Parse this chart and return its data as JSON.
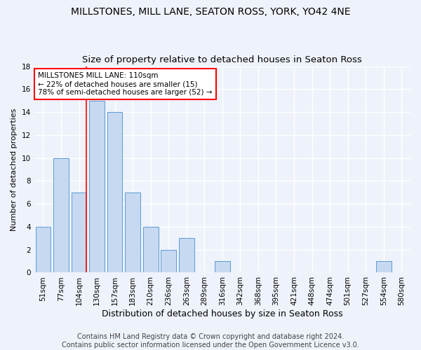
{
  "title": "MILLSTONES, MILL LANE, SEATON ROSS, YORK, YO42 4NE",
  "subtitle": "Size of property relative to detached houses in Seaton Ross",
  "xlabel": "Distribution of detached houses by size in Seaton Ross",
  "ylabel": "Number of detached properties",
  "categories": [
    "51sqm",
    "77sqm",
    "104sqm",
    "130sqm",
    "157sqm",
    "183sqm",
    "210sqm",
    "236sqm",
    "263sqm",
    "289sqm",
    "316sqm",
    "342sqm",
    "368sqm",
    "395sqm",
    "421sqm",
    "448sqm",
    "474sqm",
    "501sqm",
    "527sqm",
    "554sqm",
    "580sqm"
  ],
  "values": [
    4,
    10,
    7,
    15,
    14,
    7,
    4,
    2,
    3,
    0,
    1,
    0,
    0,
    0,
    0,
    0,
    0,
    0,
    0,
    1,
    0
  ],
  "bar_color": "#c6d9f0",
  "bar_edge_color": "#5b9bd5",
  "annotation_text": "MILLSTONES MILL LANE: 110sqm\n← 22% of detached houses are smaller (15)\n78% of semi-detached houses are larger (52) →",
  "annotation_box_color": "#ffffff",
  "annotation_box_edge": "#ff0000",
  "vline_color": "#ff0000",
  "footer_line1": "Contains HM Land Registry data © Crown copyright and database right 2024.",
  "footer_line2": "Contains public sector information licensed under the Open Government Licence v3.0.",
  "ylim": [
    0,
    18
  ],
  "background_color": "#eef2fa",
  "grid_color": "#ffffff",
  "title_fontsize": 10,
  "subtitle_fontsize": 9.5,
  "ylabel_fontsize": 8,
  "xlabel_fontsize": 9,
  "tick_fontsize": 7.5,
  "annotation_fontsize": 7.5,
  "footer_fontsize": 7
}
